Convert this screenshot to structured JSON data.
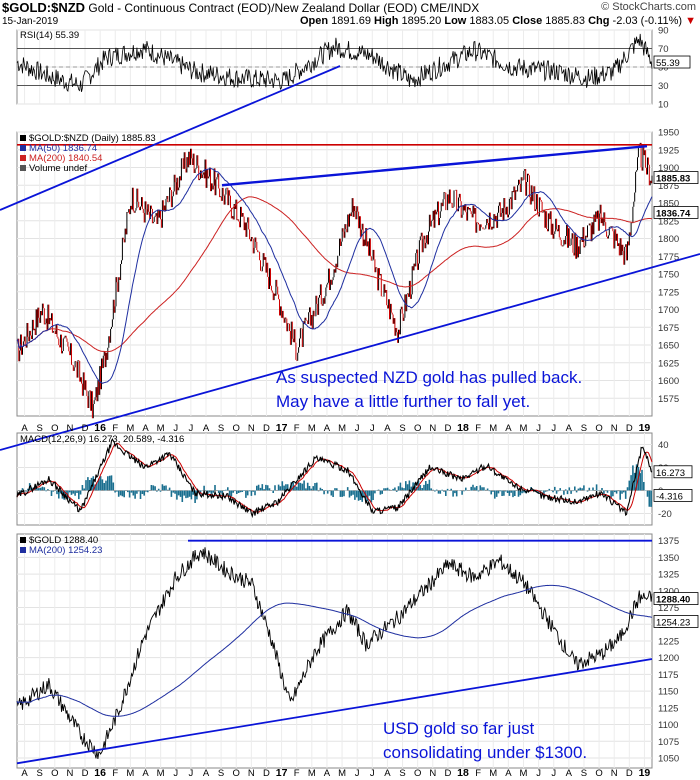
{
  "header": {
    "symbol": "$GOLD:$NZD",
    "description": "Gold - Continuous Contract (EOD)/New Zealand Dollar (EOD)  CME/INDX",
    "brand": "© StockCharts.com",
    "date": "15-Jan-2019",
    "open_label": "Open",
    "open": "1891.69",
    "high_label": "High",
    "high": "1895.20",
    "low_label": "Low",
    "low": "1883.05",
    "close_label": "Close",
    "close": "1885.83",
    "chg_label": "Chg",
    "chg": "-2.03 (-0.11%)",
    "chg_arrow": "▼"
  },
  "colors": {
    "price": "#000000",
    "down": "#cc0000",
    "ma50": "#1f2fa0",
    "ma200": "#cc2222",
    "trend": "#0a14d8",
    "macd_hist": "#1a6f8f"
  },
  "chart_data": [
    {
      "type": "line",
      "panel": "RSI",
      "legend": [
        "RSI(14) 55.39"
      ],
      "ylim": [
        10,
        90
      ],
      "yticks": [
        10,
        30,
        50,
        70,
        90
      ],
      "reference_lines": [
        30,
        70
      ],
      "last_value_label": "55.39",
      "series": [
        {
          "name": "RSI(14)",
          "last": 55.39
        }
      ]
    },
    {
      "type": "line",
      "panel": "$GOLD:$NZD",
      "legend": [
        "$GOLD:$NZD (Daily) 1885.83",
        "MA(50) 1836.74",
        "MA(200) 1840.54",
        "Volume undef"
      ],
      "ylim": [
        1550,
        1950
      ],
      "yticks": [
        1575,
        1600,
        1625,
        1650,
        1675,
        1700,
        1725,
        1750,
        1775,
        1800,
        1825,
        1850,
        1875,
        1900,
        1925,
        1950
      ],
      "last_value_labels": [
        "1885.83",
        "1836.74"
      ],
      "series": [
        {
          "name": "$GOLD:$NZD (Daily)",
          "last": 1885.83
        },
        {
          "name": "MA(50)",
          "last": 1836.74
        },
        {
          "name": "MA(200)",
          "last": 1840.54
        }
      ],
      "annotation": [
        "As suspected NZD gold has pulled back.",
        "May have a little further to fall yet."
      ]
    },
    {
      "type": "line",
      "panel": "MACD",
      "legend": [
        "MACD(12,26,9) 16.273, 20.589, -4.316"
      ],
      "ylim": [
        -30,
        50
      ],
      "yticks": [
        -20,
        0,
        20,
        40
      ],
      "last_value_labels": [
        "16.273",
        "-4.316"
      ],
      "series": [
        {
          "name": "MACD",
          "last": 16.273
        },
        {
          "name": "Signal",
          "last": 20.589
        },
        {
          "name": "Histogram",
          "last": -4.316
        }
      ]
    },
    {
      "type": "line",
      "panel": "$GOLD",
      "legend": [
        "$GOLD 1288.40",
        "MA(200) 1254.23"
      ],
      "ylim": [
        1035,
        1385
      ],
      "yticks": [
        1050,
        1075,
        1100,
        1125,
        1150,
        1175,
        1200,
        1225,
        1250,
        1275,
        1300,
        1325,
        1350,
        1375
      ],
      "last_value_labels": [
        "1288.40",
        "1254.23"
      ],
      "series": [
        {
          "name": "$GOLD",
          "last": 1288.4
        },
        {
          "name": "MA(200)",
          "last": 1254.23
        }
      ],
      "annotation": [
        "USD gold so far just",
        "consolidating under $1300."
      ]
    }
  ],
  "x_axis_labels": [
    "A",
    "S",
    "O",
    "N",
    "D",
    "16",
    "F",
    "M",
    "A",
    "M",
    "J",
    "J",
    "A",
    "S",
    "O",
    "N",
    "D",
    "17",
    "F",
    "M",
    "A",
    "M",
    "J",
    "J",
    "A",
    "S",
    "O",
    "N",
    "D",
    "18",
    "F",
    "M",
    "A",
    "M",
    "J",
    "J",
    "A",
    "S",
    "O",
    "N",
    "D",
    "19"
  ],
  "x_axis_bold": [
    "16",
    "17",
    "18",
    "19"
  ]
}
